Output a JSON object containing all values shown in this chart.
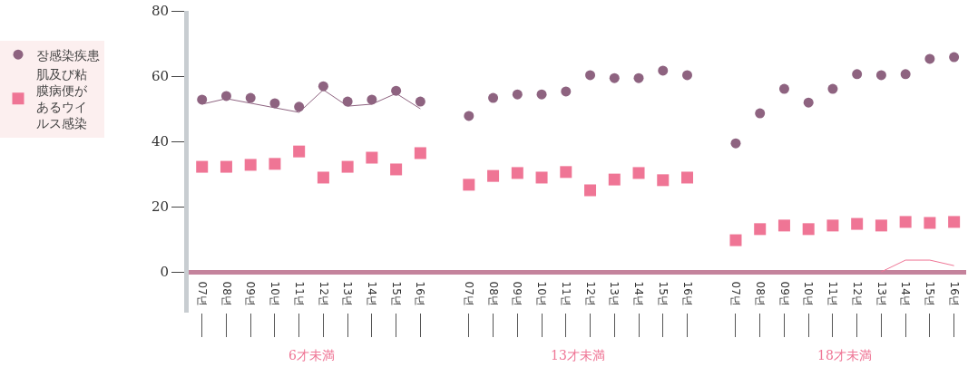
{
  "chart_data": {
    "type": "scatter",
    "categories": [
      "07년",
      "08년",
      "09년",
      "10년",
      "11년",
      "12년",
      "13년",
      "14년",
      "15년",
      "16년",
      null,
      "07년",
      "08년",
      "09년",
      "10년",
      "11년",
      "12년",
      "13년",
      "14년",
      "15년",
      "16년",
      null,
      "07년",
      "08년",
      "09년",
      "10년",
      "11년",
      "12년",
      "13년",
      "14년",
      "15년",
      "16년"
    ],
    "series": [
      {
        "name": "장感染疾患",
        "color": "#8e6380",
        "marker": "circle",
        "values": [
          52.8,
          53.9,
          53.3,
          51.7,
          50.6,
          56.9,
          52.2,
          52.8,
          55.5,
          52.2,
          null,
          47.8,
          53.3,
          54.4,
          54.4,
          55.3,
          60.3,
          59.4,
          59.4,
          61.7,
          60.3,
          null,
          39.4,
          48.6,
          56.1,
          51.9,
          56.1,
          60.6,
          60.3,
          60.6,
          65.3,
          65.8
        ]
      },
      {
        "name": "肌及び粘膜病便があるウイルス感染",
        "color": "#ef7595",
        "marker": "square",
        "values": [
          32.2,
          32.2,
          32.8,
          33.1,
          36.9,
          28.9,
          32.2,
          35,
          31.4,
          36.4,
          null,
          26.7,
          29.4,
          30.3,
          28.9,
          30.6,
          25,
          28.3,
          30.3,
          28.1,
          28.9,
          null,
          9.7,
          13.1,
          14.2,
          13.1,
          14.2,
          14.7,
          14.2,
          15.3,
          15,
          15.3
        ]
      },
      {
        "type": "line",
        "color": "#8e6380",
        "marker": "none",
        "values": [
          51.4,
          53.1,
          51.7,
          50.3,
          48.9,
          55.8,
          50.8,
          51.4,
          54.7,
          50,
          null,
          null,
          null,
          null,
          null,
          null,
          null,
          null,
          null,
          null,
          null,
          null,
          null,
          null,
          null,
          null,
          null,
          null,
          null,
          null,
          null,
          null
        ]
      },
      {
        "type": "line",
        "color": "#ef7595",
        "marker": "none",
        "values": [
          null,
          null,
          null,
          null,
          null,
          null,
          null,
          null,
          null,
          null,
          null,
          null,
          null,
          null,
          null,
          null,
          null,
          null,
          null,
          null,
          null,
          null,
          null,
          null,
          null,
          null,
          null,
          null,
          0,
          3.6,
          3.6,
          1.9
        ]
      }
    ],
    "ylim": [
      -12.5,
      80
    ],
    "yticks": [
      0,
      20,
      40,
      60,
      80
    ],
    "grid": false,
    "legend": "top left",
    "annotations": [
      "6才未満",
      "13才未満",
      "18才未満"
    ]
  }
}
